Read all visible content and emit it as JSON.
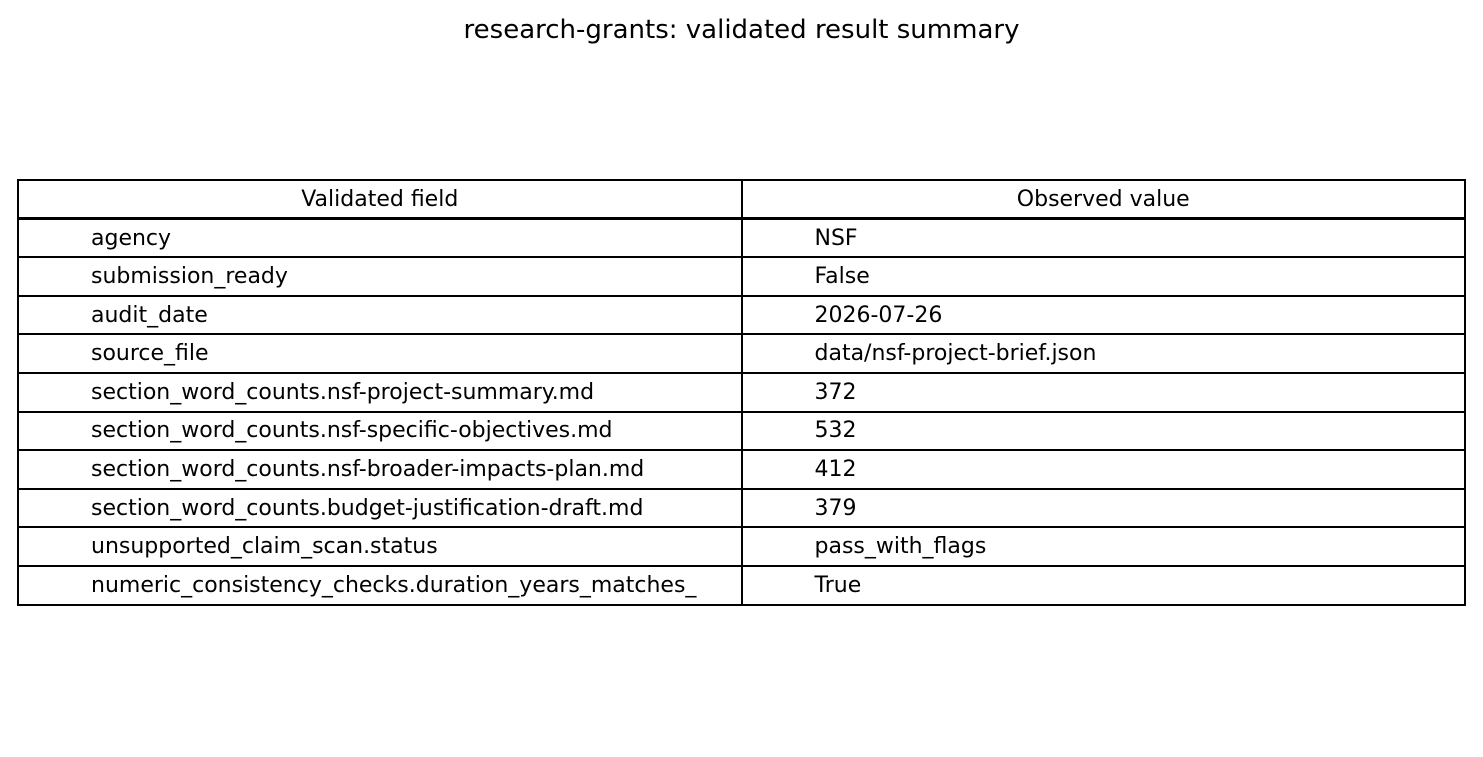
{
  "chart_data": {
    "type": "table",
    "title": "research-grants: validated result summary",
    "columns": [
      "Validated field",
      "Observed value"
    ],
    "rows": [
      [
        "agency",
        "NSF"
      ],
      [
        "submission_ready",
        "False"
      ],
      [
        "audit_date",
        "2026-07-26"
      ],
      [
        "source_file",
        "data/nsf-project-brief.json"
      ],
      [
        "section_word_counts.nsf-project-summary.md",
        "372"
      ],
      [
        "section_word_counts.nsf-specific-objectives.md",
        "532"
      ],
      [
        "section_word_counts.nsf-broader-impacts-plan.md",
        "412"
      ],
      [
        "section_word_counts.budget-justification-draft.md",
        "379"
      ],
      [
        "unsupported_claim_scan.status",
        "pass_with_flags"
      ],
      [
        "numeric_consistency_checks.duration_years_matches_",
        "True"
      ]
    ]
  }
}
